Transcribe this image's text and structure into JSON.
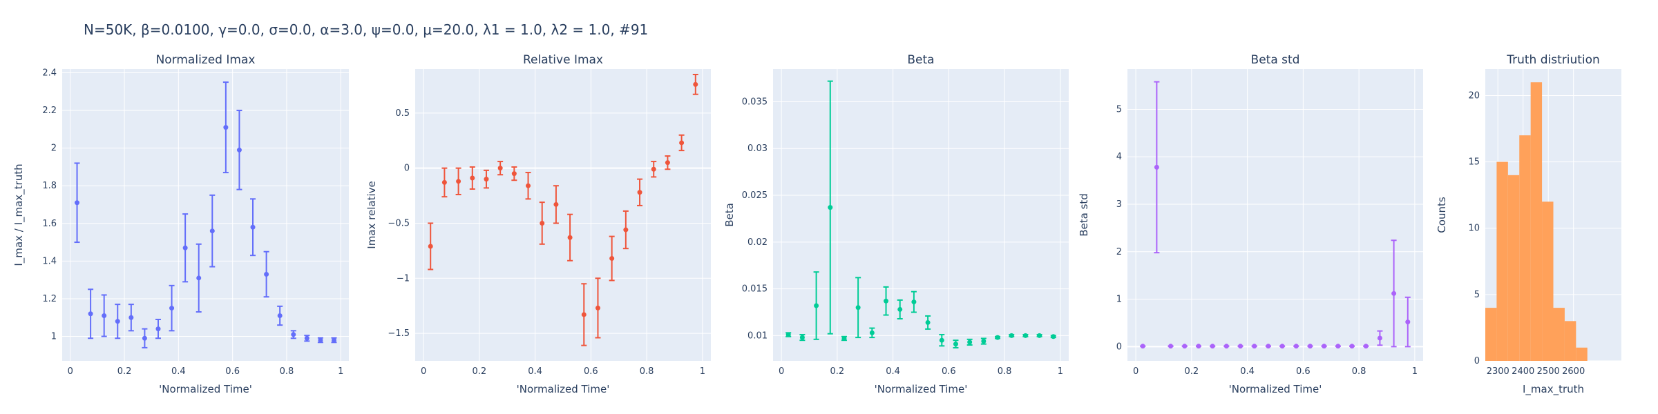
{
  "suptitle": "N=50K, β=0.0100, γ=0.0, σ=0.0,  α=3.0, ψ=0.0, μ=20.0, λ1 = 1.0, λ2 = 1.0, #91",
  "colors": {
    "plot_bg": "#e5ecf6",
    "grid": "#ffffff",
    "text": "#2a3f5f"
  },
  "chart_data": [
    {
      "type": "scatter",
      "title": "Normalized Imax",
      "xlabel": "'Normalized Time'",
      "ylabel": "I_max / I_max_truth",
      "color": "#636efa",
      "xlim": [
        -0.03,
        1.03
      ],
      "ylim": [
        0.87,
        2.42
      ],
      "xticks": [
        0,
        0.2,
        0.4,
        0.6,
        0.8,
        1
      ],
      "xtick_labels": [
        "0",
        "0.2",
        "0.4",
        "0.6",
        "0.8",
        "1"
      ],
      "yticks": [
        1,
        1.2,
        1.4,
        1.6,
        1.8,
        2,
        2.2,
        2.4
      ],
      "ytick_labels": [
        "1",
        "1.2",
        "1.4",
        "1.6",
        "1.8",
        "2",
        "2.2",
        "2.4"
      ],
      "x": [
        0.025,
        0.075,
        0.125,
        0.175,
        0.225,
        0.275,
        0.325,
        0.375,
        0.425,
        0.475,
        0.525,
        0.575,
        0.625,
        0.675,
        0.725,
        0.775,
        0.825,
        0.875,
        0.925,
        0.975
      ],
      "y": [
        1.71,
        1.12,
        1.11,
        1.08,
        1.1,
        0.99,
        1.04,
        1.15,
        1.47,
        1.31,
        1.56,
        2.11,
        1.99,
        1.58,
        1.33,
        1.11,
        1.01,
        0.99,
        0.98,
        0.98
      ],
      "error": [
        0.21,
        0.13,
        0.11,
        0.09,
        0.07,
        0.05,
        0.05,
        0.12,
        0.18,
        0.18,
        0.19,
        0.24,
        0.21,
        0.15,
        0.12,
        0.05,
        0.02,
        0.015,
        0.012,
        0.012
      ]
    },
    {
      "type": "scatter",
      "title": "Relative Imax",
      "xlabel": "'Normalized Time'",
      "ylabel": "Imax relative",
      "color": "#ef553b",
      "xlim": [
        -0.03,
        1.03
      ],
      "ylim": [
        -1.75,
        0.9
      ],
      "xticks": [
        0,
        0.2,
        0.4,
        0.6,
        0.8,
        1
      ],
      "xtick_labels": [
        "0",
        "0.2",
        "0.4",
        "0.6",
        "0.8",
        "1"
      ],
      "yticks": [
        -1.5,
        -1,
        -0.5,
        0,
        0.5
      ],
      "ytick_labels": [
        "−1.5",
        "−1",
        "−0.5",
        "0",
        "0.5"
      ],
      "x": [
        0.025,
        0.075,
        0.125,
        0.175,
        0.225,
        0.275,
        0.325,
        0.375,
        0.425,
        0.475,
        0.525,
        0.575,
        0.625,
        0.675,
        0.725,
        0.775,
        0.825,
        0.875,
        0.925,
        0.975
      ],
      "y": [
        -0.71,
        -0.13,
        -0.12,
        -0.09,
        -0.1,
        0.0,
        -0.05,
        -0.16,
        -0.5,
        -0.33,
        -0.63,
        -1.33,
        -1.27,
        -0.82,
        -0.56,
        -0.22,
        -0.01,
        0.05,
        0.23,
        0.76
      ],
      "error": [
        0.21,
        0.13,
        0.12,
        0.1,
        0.08,
        0.06,
        0.06,
        0.12,
        0.19,
        0.17,
        0.21,
        0.28,
        0.27,
        0.2,
        0.17,
        0.12,
        0.07,
        0.06,
        0.07,
        0.09
      ]
    },
    {
      "type": "scatter",
      "title": "Beta",
      "xlabel": "'Normalized Time'",
      "ylabel": "Beta",
      "color": "#00cc96",
      "xlim": [
        -0.03,
        1.03
      ],
      "ylim": [
        0.0073,
        0.0385
      ],
      "xticks": [
        0,
        0.2,
        0.4,
        0.6,
        0.8,
        1
      ],
      "xtick_labels": [
        "0",
        "0.2",
        "0.4",
        "0.6",
        "0.8",
        "1"
      ],
      "yticks": [
        0.01,
        0.015,
        0.02,
        0.025,
        0.03,
        0.035
      ],
      "ytick_labels": [
        "0.01",
        "0.015",
        "0.02",
        "0.025",
        "0.03",
        "0.035"
      ],
      "x": [
        0.025,
        0.075,
        0.125,
        0.175,
        0.225,
        0.275,
        0.325,
        0.375,
        0.425,
        0.475,
        0.525,
        0.575,
        0.625,
        0.675,
        0.725,
        0.775,
        0.825,
        0.875,
        0.925,
        0.975
      ],
      "y": [
        0.0101,
        0.0098,
        0.0132,
        0.0237,
        0.0097,
        0.013,
        0.0103,
        0.0137,
        0.0128,
        0.0136,
        0.0114,
        0.0095,
        0.0091,
        0.0093,
        0.0094,
        0.0098,
        0.01,
        0.01,
        0.01,
        0.0099
      ],
      "error": [
        0.0002,
        0.0003,
        0.0036,
        0.0135,
        0.0002,
        0.0032,
        0.0005,
        0.0015,
        0.001,
        0.0011,
        0.0007,
        0.0006,
        0.0004,
        0.0003,
        0.0003,
        0.0001,
        0.0001,
        0.0001,
        0.0001,
        0.0001
      ]
    },
    {
      "type": "scatter",
      "title": "Beta std",
      "xlabel": "'Normalized Time'",
      "ylabel": "Beta std",
      "color": "#ab63fa",
      "xlim": [
        -0.03,
        1.03
      ],
      "ylim": [
        -0.3,
        5.85
      ],
      "xticks": [
        0,
        0.2,
        0.4,
        0.6,
        0.8,
        1
      ],
      "xtick_labels": [
        "0",
        "0.2",
        "0.4",
        "0.6",
        "0.8",
        "1"
      ],
      "yticks": [
        0,
        1,
        2,
        3,
        4,
        5
      ],
      "ytick_labels": [
        "0",
        "1",
        "2",
        "3",
        "4",
        "5"
      ],
      "x": [
        0.025,
        0.075,
        0.125,
        0.175,
        0.225,
        0.275,
        0.325,
        0.375,
        0.425,
        0.475,
        0.525,
        0.575,
        0.625,
        0.675,
        0.725,
        0.775,
        0.825,
        0.875,
        0.925,
        0.975
      ],
      "y": [
        0.01,
        3.78,
        0.01,
        0.01,
        0.01,
        0.01,
        0.01,
        0.01,
        0.01,
        0.01,
        0.01,
        0.01,
        0.01,
        0.01,
        0.01,
        0.01,
        0.01,
        0.18,
        1.12,
        0.52
      ],
      "error": [
        0,
        1.8,
        0,
        0,
        0,
        0,
        0,
        0,
        0,
        0,
        0,
        0,
        0,
        0,
        0,
        0,
        0,
        0.15,
        1.12,
        0.52
      ]
    },
    {
      "type": "bar",
      "title": "Truth distriution",
      "xlabel": "I_max_truth",
      "ylabel": "Counts",
      "color": "#ffa15a",
      "xlim": [
        2250,
        2790
      ],
      "ylim": [
        0,
        22
      ],
      "xticks": [
        2300,
        2400,
        2500,
        2600
      ],
      "xtick_labels": [
        "2300",
        "2400",
        "2500",
        "2600"
      ],
      "yticks": [
        0,
        5,
        10,
        15,
        20
      ],
      "ytick_labels": [
        "0",
        "5",
        "10",
        "15",
        "20"
      ],
      "bin_start": 2250,
      "bin_width": 45,
      "values": [
        4,
        15,
        14,
        17,
        21,
        12,
        4,
        3,
        1
      ]
    }
  ]
}
